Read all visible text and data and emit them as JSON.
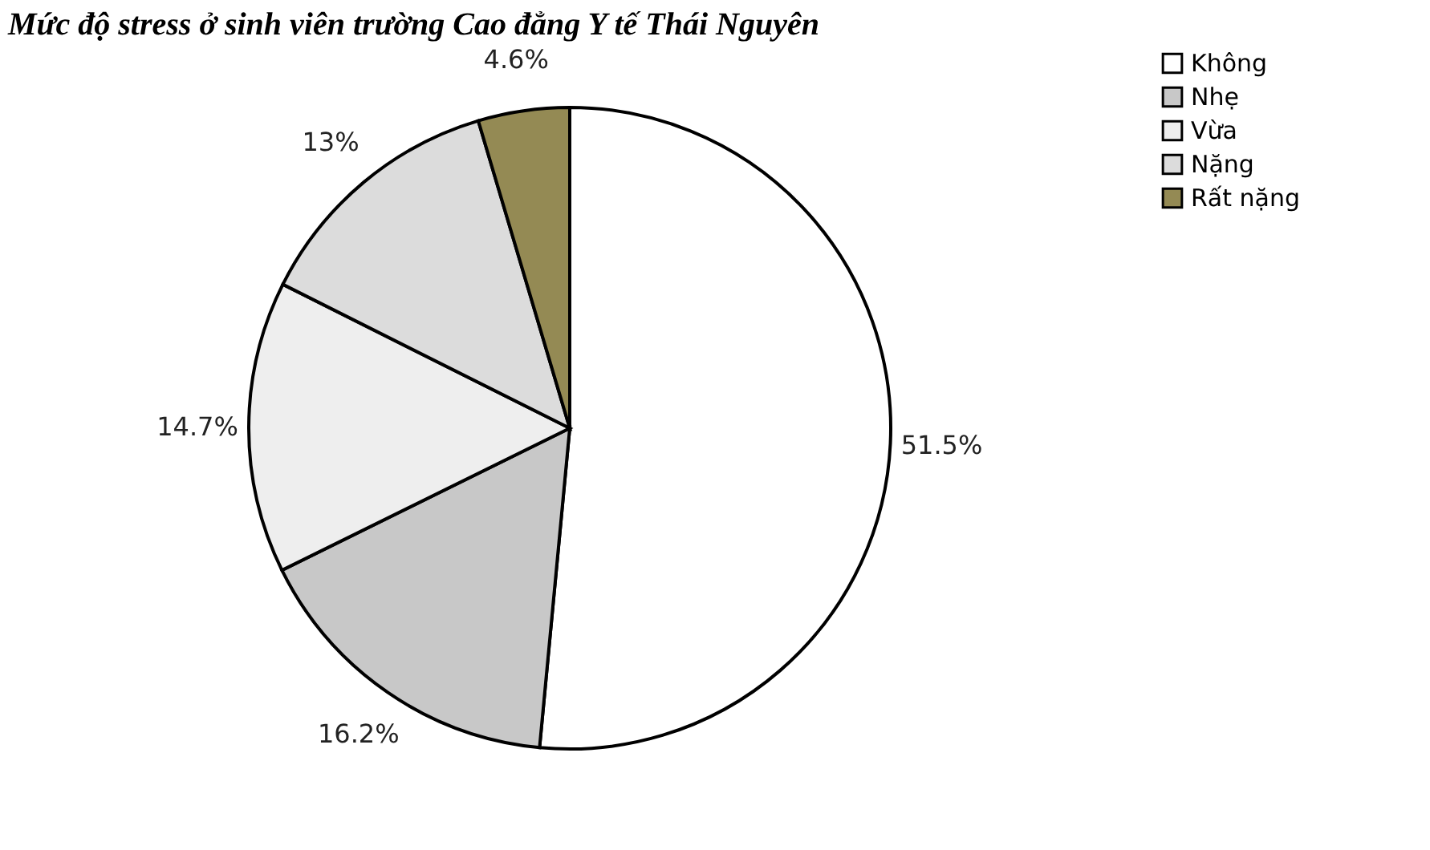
{
  "chart_data": {
    "type": "pie",
    "title": "Mức độ stress ở sinh viên trường Cao đẳng Y tế Thái Nguyên",
    "categories": [
      "Không",
      "Nhẹ",
      "Vừa",
      "Nặng",
      "Rất nặng"
    ],
    "values": [
      51.5,
      16.2,
      14.7,
      13,
      4.6
    ],
    "value_labels": [
      "51.5%",
      "16.2%",
      "14.7%",
      "13%",
      "4.6%"
    ],
    "colors": [
      "#ffffff",
      "#c8c8c8",
      "#eeeeee",
      "#dcdcdc",
      "#948a54"
    ],
    "legend": "right"
  }
}
